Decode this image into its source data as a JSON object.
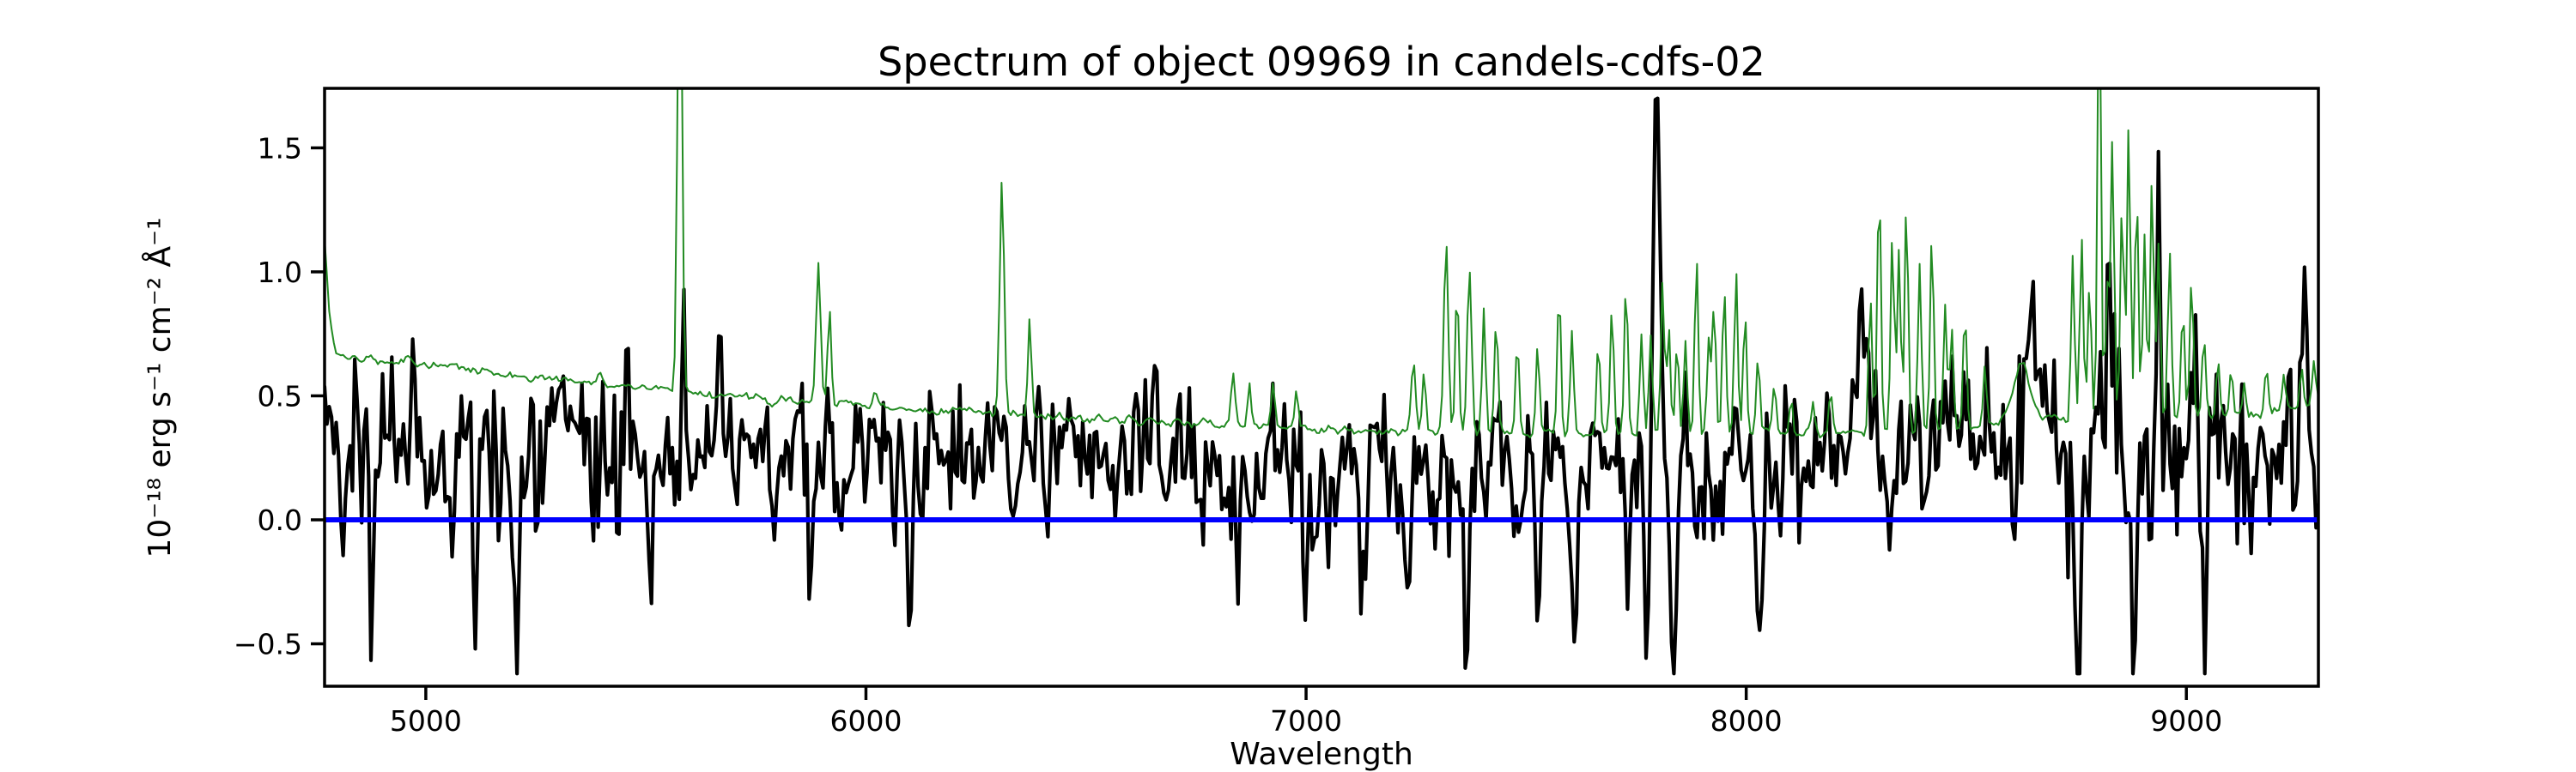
{
  "figure": {
    "background": "#ffffff",
    "kind": "matplotlib-spectrum-plot"
  },
  "chart_data": {
    "type": "line",
    "title": "Spectrum of object 09969 in candels-cdfs-02",
    "xlabel": "Wavelength",
    "ylabel": "10⁻¹⁸ erg s⁻¹ cm⁻² Å⁻¹",
    "xlim": [
      4770,
      9300
    ],
    "ylim": [
      -0.671,
      1.74
    ],
    "grid": false,
    "legend": null,
    "xticks": {
      "values": [
        5000,
        6000,
        7000,
        8000,
        9000
      ],
      "labels": [
        "5000",
        "6000",
        "7000",
        "8000",
        "9000"
      ]
    },
    "yticks": {
      "values": [
        -0.5,
        0.0,
        0.5,
        1.0,
        1.5
      ],
      "labels": [
        "−0.5",
        "0.0",
        "0.5",
        "1.0",
        "1.5"
      ]
    },
    "colors": {
      "flux": "#000000",
      "noise": "#228B22",
      "zero_line": "#0000ff",
      "axes": "#000000"
    },
    "sampling": {
      "n_points": 860,
      "noise_seed": 42
    },
    "series": [
      {
        "name": "flux",
        "role": "object spectrum (noisy black line)",
        "color": "#000000",
        "linewidth": 4.2,
        "clip": [
          -0.62,
          1.7
        ],
        "noise_corr": 0.35,
        "continuum": [
          [
            4770,
            0.4
          ],
          [
            4800,
            0.3
          ],
          [
            4900,
            0.27
          ],
          [
            5000,
            0.26
          ],
          [
            5100,
            0.25
          ],
          [
            5200,
            0.25
          ],
          [
            5300,
            0.27
          ],
          [
            5400,
            0.27
          ],
          [
            5500,
            0.26
          ],
          [
            5600,
            0.26
          ],
          [
            5700,
            0.25
          ],
          [
            5800,
            0.24
          ],
          [
            5900,
            0.24
          ],
          [
            6000,
            0.26
          ],
          [
            6100,
            0.25
          ],
          [
            6200,
            0.25
          ],
          [
            6300,
            0.25
          ],
          [
            6400,
            0.24
          ],
          [
            6500,
            0.25
          ],
          [
            6600,
            0.24
          ],
          [
            6700,
            0.23
          ],
          [
            6800,
            0.23
          ],
          [
            6900,
            0.22
          ],
          [
            7000,
            0.22
          ],
          [
            7100,
            0.22
          ],
          [
            7200,
            0.21
          ],
          [
            7300,
            0.2
          ],
          [
            7400,
            0.2
          ],
          [
            7500,
            0.21
          ],
          [
            7600,
            0.22
          ],
          [
            7700,
            0.23
          ],
          [
            7800,
            0.22
          ],
          [
            7900,
            0.22
          ],
          [
            8000,
            0.22
          ],
          [
            8100,
            0.23
          ],
          [
            8200,
            0.27
          ],
          [
            8300,
            0.33
          ],
          [
            8400,
            0.3
          ],
          [
            8500,
            0.27
          ],
          [
            8600,
            0.32
          ],
          [
            8700,
            0.3
          ],
          [
            8800,
            0.32
          ],
          [
            8900,
            0.33
          ],
          [
            9000,
            0.3
          ],
          [
            9100,
            0.28
          ],
          [
            9200,
            0.3
          ],
          [
            9300,
            0.33
          ]
        ],
        "noise_sigma": [
          [
            4770,
            0.2
          ],
          [
            5000,
            0.2
          ],
          [
            5300,
            0.19
          ],
          [
            5600,
            0.17
          ],
          [
            5900,
            0.17
          ],
          [
            6200,
            0.16
          ],
          [
            6500,
            0.15
          ],
          [
            6800,
            0.16
          ],
          [
            7100,
            0.17
          ],
          [
            7400,
            0.17
          ],
          [
            7700,
            0.16
          ],
          [
            8000,
            0.16
          ],
          [
            8300,
            0.17
          ],
          [
            8600,
            0.2
          ],
          [
            8750,
            0.27
          ],
          [
            8900,
            0.3
          ],
          [
            9050,
            0.24
          ],
          [
            9300,
            0.24
          ]
        ],
        "features": [
          [
            4840,
            0.5,
            4
          ],
          [
            4878,
            -0.6,
            5
          ],
          [
            4972,
            0.5,
            4
          ],
          [
            5115,
            -0.75,
            6
          ],
          [
            5205,
            -0.62,
            5
          ],
          [
            5458,
            0.45,
            4
          ],
          [
            5510,
            -0.58,
            5
          ],
          [
            5585,
            0.5,
            4
          ],
          [
            5874,
            -0.7,
            5
          ],
          [
            6100,
            -0.62,
            5
          ],
          [
            6845,
            -0.55,
            5
          ],
          [
            7000,
            -0.6,
            5
          ],
          [
            7127,
            -0.62,
            5
          ],
          [
            7230,
            -0.65,
            5
          ],
          [
            7365,
            -0.75,
            6
          ],
          [
            7528,
            -0.58,
            5
          ],
          [
            7610,
            -0.62,
            5
          ],
          [
            7729,
            -0.58,
            5
          ],
          [
            7774,
            -0.75,
            5
          ],
          [
            7797,
            1.4,
            8
          ],
          [
            7832,
            -0.85,
            6
          ],
          [
            8029,
            -0.62,
            5
          ],
          [
            8265,
            0.35,
            15
          ],
          [
            8650,
            0.3,
            20
          ],
          [
            8752,
            -0.85,
            5
          ],
          [
            8822,
            0.65,
            5
          ],
          [
            8882,
            -0.85,
            5
          ],
          [
            8939,
            0.6,
            5
          ],
          [
            9042,
            -0.68,
            5
          ],
          [
            9270,
            0.58,
            6
          ]
        ]
      },
      {
        "name": "noise",
        "role": "sky / error spectrum (thin green line)",
        "color": "#228B22",
        "linewidth": 2.0,
        "wiggle_amp": 0.01,
        "baseline": [
          [
            4770,
            1.13
          ],
          [
            4782,
            0.8
          ],
          [
            4795,
            0.67
          ],
          [
            4850,
            0.655
          ],
          [
            4900,
            0.645
          ],
          [
            4950,
            0.635
          ],
          [
            5000,
            0.625
          ],
          [
            5060,
            0.615
          ],
          [
            5120,
            0.6
          ],
          [
            5180,
            0.585
          ],
          [
            5240,
            0.575
          ],
          [
            5300,
            0.565
          ],
          [
            5360,
            0.555
          ],
          [
            5420,
            0.545
          ],
          [
            5480,
            0.535
          ],
          [
            5540,
            0.525
          ],
          [
            5600,
            0.51
          ],
          [
            5660,
            0.5
          ],
          [
            5720,
            0.495
          ],
          [
            5780,
            0.49
          ],
          [
            5840,
            0.48
          ],
          [
            5900,
            0.47
          ],
          [
            5960,
            0.465
          ],
          [
            6020,
            0.455
          ],
          [
            6080,
            0.45
          ],
          [
            6140,
            0.445
          ],
          [
            6200,
            0.44
          ],
          [
            6260,
            0.43
          ],
          [
            6320,
            0.425
          ],
          [
            6380,
            0.42
          ],
          [
            6440,
            0.415
          ],
          [
            6500,
            0.41
          ],
          [
            6560,
            0.405
          ],
          [
            6620,
            0.4
          ],
          [
            6680,
            0.395
          ],
          [
            6740,
            0.39
          ],
          [
            6800,
            0.385
          ],
          [
            6860,
            0.38
          ],
          [
            6920,
            0.375
          ],
          [
            6980,
            0.37
          ],
          [
            7040,
            0.365
          ],
          [
            7100,
            0.36
          ],
          [
            7160,
            0.358
          ],
          [
            7220,
            0.356
          ],
          [
            7280,
            0.354
          ],
          [
            7340,
            0.352
          ],
          [
            7400,
            0.35
          ],
          [
            7500,
            0.348
          ],
          [
            7600,
            0.347
          ],
          [
            7700,
            0.347
          ],
          [
            7800,
            0.347
          ],
          [
            7900,
            0.347
          ],
          [
            8000,
            0.348
          ],
          [
            8100,
            0.35
          ],
          [
            8200,
            0.35
          ],
          [
            8300,
            0.352
          ],
          [
            8400,
            0.355
          ],
          [
            8500,
            0.36
          ],
          [
            8560,
            0.38
          ],
          [
            8690,
            0.42
          ],
          [
            8730,
            0.4
          ],
          [
            8800,
            0.4
          ],
          [
            8900,
            0.4
          ],
          [
            9000,
            0.41
          ],
          [
            9100,
            0.42
          ],
          [
            9200,
            0.44
          ],
          [
            9300,
            0.47
          ]
        ],
        "sky_peaks": [
          [
            4957,
            0.66,
            5
          ],
          [
            5396,
            0.58,
            6
          ],
          [
            5577,
            2.6,
            5
          ],
          [
            5892,
            1.03,
            5
          ],
          [
            5917,
            0.85,
            4
          ],
          [
            6020,
            0.52,
            4
          ],
          [
            6309,
            1.38,
            5
          ],
          [
            6372,
            0.83,
            4
          ],
          [
            6834,
            0.6,
            5
          ],
          [
            6871,
            0.56,
            4
          ],
          [
            6925,
            0.55,
            4
          ],
          [
            6978,
            0.52,
            4
          ],
          [
            7244,
            0.64,
            5
          ],
          [
            7268,
            0.6,
            4
          ],
          [
            7318,
            1.14,
            5
          ],
          [
            7343,
            0.96,
            4
          ],
          [
            7371,
            1.01,
            5
          ],
          [
            7404,
            0.86,
            4
          ],
          [
            7432,
            0.81,
            4
          ],
          [
            7480,
            0.73,
            4
          ],
          [
            7526,
            0.72,
            4
          ],
          [
            7575,
            0.96,
            4
          ],
          [
            7604,
            0.77,
            4
          ],
          [
            7664,
            0.71,
            4
          ],
          [
            7695,
            0.86,
            4
          ],
          [
            7727,
            0.96,
            4
          ],
          [
            7762,
            0.76,
            4
          ],
          [
            7783,
            0.73,
            4
          ],
          [
            7810,
            0.96,
            4
          ],
          [
            7824,
            0.78,
            4
          ],
          [
            7843,
            0.71,
            4
          ],
          [
            7862,
            0.73,
            4
          ],
          [
            7887,
            1.07,
            4
          ],
          [
            7915,
            0.73,
            4
          ],
          [
            7927,
            0.87,
            4
          ],
          [
            7950,
            0.96,
            4
          ],
          [
            7977,
            1.01,
            4
          ],
          [
            7997,
            0.86,
            4
          ],
          [
            8027,
            0.66,
            4
          ],
          [
            8064,
            0.56,
            4
          ],
          [
            8102,
            0.49,
            4
          ],
          [
            8152,
            0.47,
            4
          ],
          [
            8192,
            0.51,
            4
          ],
          [
            8282,
            0.89,
            4
          ],
          [
            8302,
            1.37,
            4
          ],
          [
            8332,
            1.17,
            4
          ],
          [
            8347,
            1.11,
            4
          ],
          [
            8364,
            1.28,
            4
          ],
          [
            8394,
            1.03,
            4
          ],
          [
            8422,
            1.18,
            4
          ],
          [
            8452,
            0.87,
            4
          ],
          [
            8467,
            0.79,
            4
          ],
          [
            8497,
            0.84,
            4
          ],
          [
            8542,
            0.61,
            4
          ],
          [
            8625,
            0.63,
            18
          ],
          [
            8742,
            1.08,
            4
          ],
          [
            8762,
            1.13,
            4
          ],
          [
            8780,
            0.96,
            4
          ],
          [
            8802,
            2.2,
            4
          ],
          [
            8820,
            0.94,
            4
          ],
          [
            8832,
            1.54,
            4
          ],
          [
            8854,
            1.29,
            4
          ],
          [
            8869,
            1.59,
            4
          ],
          [
            8887,
            1.36,
            4
          ],
          [
            8905,
            1.16,
            4
          ],
          [
            8922,
            1.39,
            4
          ],
          [
            8937,
            1.13,
            4
          ],
          [
            8962,
            1.09,
            4
          ],
          [
            8992,
            0.86,
            4
          ],
          [
            9012,
            0.98,
            4
          ],
          [
            9040,
            0.73,
            4
          ],
          [
            9072,
            0.64,
            4
          ],
          [
            9102,
            0.59,
            4
          ],
          [
            9132,
            0.56,
            4
          ],
          [
            9182,
            0.61,
            4
          ],
          [
            9222,
            0.59,
            4
          ],
          [
            9262,
            0.61,
            4
          ],
          [
            9290,
            0.63,
            4
          ]
        ]
      },
      {
        "name": "zero-line",
        "role": "horizontal reference line at flux = 0",
        "color": "#0000ff",
        "linewidth": 6,
        "y": 0.0
      }
    ]
  }
}
